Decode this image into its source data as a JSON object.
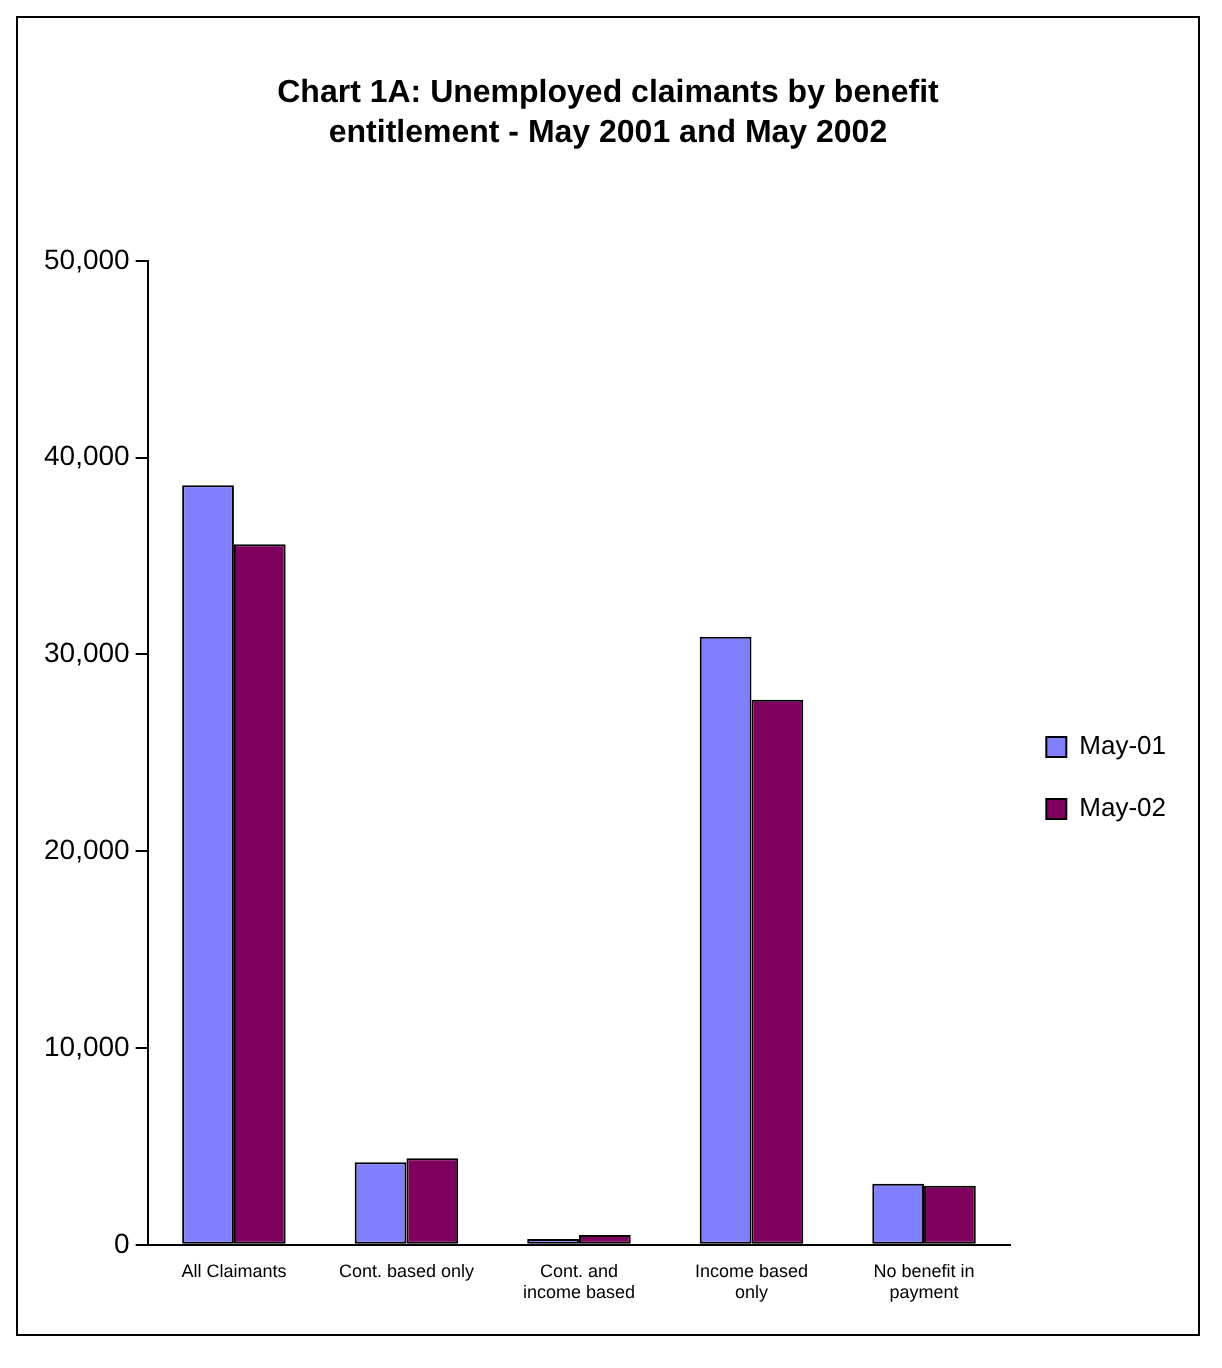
{
  "chart_data": {
    "type": "bar",
    "title": "Chart 1A:  Unemployed claimants by benefit entitlement - May 2001 and May 2002",
    "categories": [
      [
        "All Claimants"
      ],
      [
        "Cont. based only"
      ],
      [
        "Cont. and",
        "income based"
      ],
      [
        "Income based",
        "only"
      ],
      [
        "No benefit in",
        "payment"
      ]
    ],
    "series": [
      {
        "name": "May-01",
        "color": "#8080ff",
        "values": [
          38600,
          4200,
          300,
          30900,
          3100
        ]
      },
      {
        "name": "May-02",
        "color": "#800060",
        "values": [
          35600,
          4400,
          500,
          27700,
          3000
        ]
      }
    ],
    "ylim": [
      0,
      50000
    ],
    "yticks": [
      {
        "value": 0,
        "label": "0"
      },
      {
        "value": 10000,
        "label": "10,000"
      },
      {
        "value": 20000,
        "label": "20,000"
      },
      {
        "value": 30000,
        "label": "30,000"
      },
      {
        "value": 40000,
        "label": "40,000"
      },
      {
        "value": 50000,
        "label": "50,000"
      }
    ],
    "grid": false,
    "legend": "right"
  }
}
